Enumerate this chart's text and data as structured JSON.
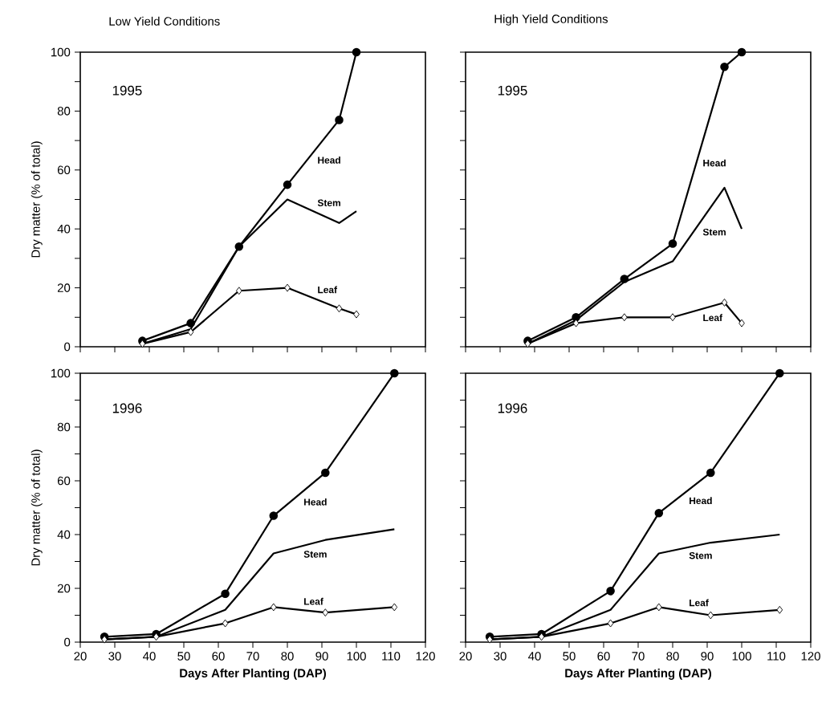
{
  "chart_data": [
    {
      "type": "line",
      "title": "Low  Yield Conditions",
      "ylabel": "Dry matter (% of total)",
      "annotations": [
        "1995"
      ],
      "x": [
        38,
        52,
        66,
        80,
        95,
        100
      ],
      "xlim": [
        20,
        120
      ],
      "xticks": [
        20,
        30,
        40,
        50,
        60,
        70,
        80,
        90,
        100,
        110,
        120
      ],
      "ylim": [
        0,
        100
      ],
      "yticks": [
        0,
        {
          "value": 10,
          "label": null
        },
        20,
        {
          "value": 30,
          "label": null
        },
        40,
        {
          "value": 50,
          "label": null
        },
        60,
        {
          "value": 70,
          "label": null
        },
        80,
        {
          "value": 90,
          "label": null
        },
        100
      ],
      "tick_labels": "y",
      "series": [
        {
          "name": "Head",
          "color": "#000000",
          "marker": "circle",
          "values": [
            2,
            8,
            34,
            55,
            77,
            100
          ]
        },
        {
          "name": "Stem",
          "color": "#000000",
          "marker": "none",
          "values": [
            1,
            6,
            34,
            50,
            42,
            46
          ]
        },
        {
          "name": "Leaf",
          "color": "#000000",
          "marker": "diamond",
          "values": [
            1,
            5,
            19,
            20,
            13,
            11
          ]
        }
      ]
    },
    {
      "type": "line",
      "title": "High Yield Conditions",
      "annotations": [
        "1995"
      ],
      "x": [
        38,
        52,
        66,
        80,
        95,
        100
      ],
      "xlim": [
        20,
        120
      ],
      "xticks": [
        20,
        30,
        40,
        50,
        60,
        70,
        80,
        90,
        100,
        110,
        120
      ],
      "ylim": [
        0,
        100
      ],
      "yticks": [
        0,
        {
          "value": 10,
          "label": null
        },
        20,
        {
          "value": 30,
          "label": null
        },
        40,
        {
          "value": 50,
          "label": null
        },
        60,
        {
          "value": 70,
          "label": null
        },
        80,
        {
          "value": 90,
          "label": null
        },
        100
      ],
      "tick_labels": false,
      "series": [
        {
          "name": "Head",
          "color": "#000000",
          "marker": "circle",
          "values": [
            2,
            10,
            23,
            35,
            95,
            100
          ]
        },
        {
          "name": "Stem",
          "color": "#000000",
          "marker": "none",
          "values": [
            1,
            9,
            22,
            29,
            54,
            40
          ]
        },
        {
          "name": "Leaf",
          "color": "#000000",
          "marker": "diamond",
          "values": [
            1,
            8,
            10,
            10,
            15,
            8
          ]
        }
      ]
    },
    {
      "type": "line",
      "xlabel": "Days  After  Planting  (DAP)",
      "ylabel": "Dry matter (% of total)",
      "annotations": [
        "1996"
      ],
      "x": [
        27,
        42,
        62,
        76,
        91,
        111
      ],
      "xlim": [
        20,
        120
      ],
      "xticks": [
        20,
        30,
        40,
        50,
        60,
        70,
        80,
        90,
        100,
        110,
        120
      ],
      "ylim": [
        0,
        100
      ],
      "yticks": [
        0,
        {
          "value": 10,
          "label": null
        },
        20,
        {
          "value": 30,
          "label": null
        },
        40,
        {
          "value": 50,
          "label": null
        },
        60,
        {
          "value": 70,
          "label": null
        },
        80,
        {
          "value": 90,
          "label": null
        },
        100
      ],
      "series": [
        {
          "name": "Head",
          "color": "#000000",
          "marker": "circle",
          "values": [
            2,
            3,
            18,
            47,
            63,
            100
          ]
        },
        {
          "name": "Stem",
          "color": "#000000",
          "marker": "none",
          "values": [
            1,
            2,
            12,
            33,
            38,
            42
          ]
        },
        {
          "name": "Leaf",
          "color": "#000000",
          "marker": "diamond",
          "values": [
            1,
            2,
            7,
            13,
            11,
            13
          ]
        }
      ]
    },
    {
      "type": "line",
      "xlabel": "Days  After  Planting  (DAP)",
      "annotations": [
        "1996"
      ],
      "x": [
        27,
        42,
        62,
        76,
        91,
        111
      ],
      "xlim": [
        20,
        120
      ],
      "xticks": [
        20,
        30,
        40,
        50,
        60,
        70,
        80,
        90,
        100,
        110,
        120
      ],
      "ylim": [
        0,
        100
      ],
      "yticks": [
        0,
        {
          "value": 10,
          "label": null
        },
        20,
        {
          "value": 30,
          "label": null
        },
        40,
        {
          "value": 50,
          "label": null
        },
        60,
        {
          "value": 70,
          "label": null
        },
        80,
        {
          "value": 90,
          "label": null
        },
        100
      ],
      "tick_labels": "x",
      "series": [
        {
          "name": "Head",
          "color": "#000000",
          "marker": "circle",
          "values": [
            2,
            3,
            19,
            48,
            63,
            100
          ]
        },
        {
          "name": "Stem",
          "color": "#000000",
          "marker": "none",
          "values": [
            1,
            2,
            12,
            33,
            37,
            40
          ]
        },
        {
          "name": "Leaf",
          "color": "#000000",
          "marker": "diamond",
          "values": [
            1,
            2,
            7,
            13,
            10,
            12
          ]
        }
      ]
    }
  ]
}
